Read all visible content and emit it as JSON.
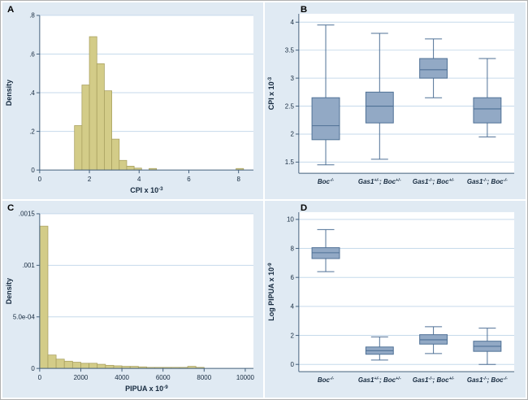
{
  "figure": {
    "description": "Four-panel statistical figure: histograms of CPI and PIPUA distributions and box plots by genotype",
    "panel_letters": [
      "A",
      "B",
      "C",
      "D"
    ]
  },
  "colors": {
    "panel_bg": "#e0eaf3",
    "plot_bg": "#ffffff",
    "grid": "#c6daeb",
    "axis": "#44607c",
    "text": "#15293e",
    "letter": "#000000",
    "hist_fill": "#d3cc88",
    "hist_stroke": "#a79f5e",
    "box_fill": "#92a9c5",
    "box_stroke": "#4f7196"
  },
  "chart_data": [
    {
      "panel": "A",
      "type": "bar",
      "subtype": "histogram",
      "ylabel": "Density",
      "xlabel_parts": [
        {
          "t": "CPI x 10"
        },
        {
          "t": "-3",
          "sup": true
        }
      ],
      "xlim": [
        0,
        8.6
      ],
      "ylim": [
        0,
        0.8
      ],
      "xticks": [
        {
          "v": 0,
          "l": "0"
        },
        {
          "v": 2,
          "l": "2"
        },
        {
          "v": 4,
          "l": "4"
        },
        {
          "v": 6,
          "l": "6"
        },
        {
          "v": 8,
          "l": "8"
        }
      ],
      "yticks": [
        {
          "v": 0,
          "l": "0"
        },
        {
          "v": 0.2,
          "l": ".2"
        },
        {
          "v": 0.4,
          "l": ".4"
        },
        {
          "v": 0.6,
          "l": ".6"
        },
        {
          "v": 0.8,
          "l": ".8"
        }
      ],
      "bin_width": 0.3,
      "bins": [
        [
          1.4,
          0.23
        ],
        [
          1.7,
          0.44
        ],
        [
          2.0,
          0.69
        ],
        [
          2.3,
          0.55
        ],
        [
          2.6,
          0.41
        ],
        [
          2.9,
          0.16
        ],
        [
          3.2,
          0.05
        ],
        [
          3.5,
          0.02
        ],
        [
          3.8,
          0.01
        ],
        [
          4.4,
          0.008
        ],
        [
          7.9,
          0.008
        ]
      ]
    },
    {
      "panel": "B",
      "type": "box",
      "ylabel_parts": [
        {
          "t": "CPI x 10"
        },
        {
          "t": "-3",
          "sup": true
        }
      ],
      "ylim": [
        1.3,
        4.15
      ],
      "yticks": [
        {
          "v": 1.5,
          "l": "1.5"
        },
        {
          "v": 2,
          "l": "2"
        },
        {
          "v": 2.5,
          "l": "2.5"
        },
        {
          "v": 3,
          "l": "3"
        },
        {
          "v": 3.5,
          "l": "3.5"
        },
        {
          "v": 4,
          "l": "4"
        }
      ],
      "groups": [
        {
          "label_parts": [
            {
              "t": "Boc"
            },
            {
              "t": "-/-",
              "sup": true
            }
          ],
          "whisker_low": 1.45,
          "q1": 1.9,
          "median": 2.15,
          "q3": 2.65,
          "whisker_high": 3.95
        },
        {
          "label_parts": [
            {
              "t": "Gas1"
            },
            {
              "t": "+/-",
              "sup": true
            },
            {
              "t": "; Boc"
            },
            {
              "t": "+/-",
              "sup": true
            }
          ],
          "whisker_low": 1.55,
          "q1": 2.2,
          "median": 2.5,
          "q3": 2.75,
          "whisker_high": 3.8
        },
        {
          "label_parts": [
            {
              "t": "Gas1"
            },
            {
              "t": "-/-",
              "sup": true
            },
            {
              "t": "; Boc"
            },
            {
              "t": "+/-",
              "sup": true
            }
          ],
          "whisker_low": 2.65,
          "q1": 3.0,
          "median": 3.15,
          "q3": 3.35,
          "whisker_high": 3.7
        },
        {
          "label_parts": [
            {
              "t": "Gas1"
            },
            {
              "t": "-/-",
              "sup": true
            },
            {
              "t": "; Boc"
            },
            {
              "t": "-/-",
              "sup": true
            }
          ],
          "whisker_low": 1.95,
          "q1": 2.2,
          "median": 2.45,
          "q3": 2.65,
          "whisker_high": 3.35
        }
      ]
    },
    {
      "panel": "C",
      "type": "bar",
      "subtype": "histogram",
      "ylabel": "Density",
      "xlabel_parts": [
        {
          "t": "PIPUA x 10"
        },
        {
          "t": "-9",
          "sup": true
        }
      ],
      "xlim": [
        0,
        10400
      ],
      "ylim": [
        0,
        0.0015
      ],
      "xticks": [
        {
          "v": 0,
          "l": "0"
        },
        {
          "v": 2000,
          "l": "2000"
        },
        {
          "v": 4000,
          "l": "4000"
        },
        {
          "v": 6000,
          "l": "6000"
        },
        {
          "v": 8000,
          "l": "8000"
        },
        {
          "v": 10000,
          "l": "10000"
        }
      ],
      "yticks": [
        {
          "v": 0,
          "l": "0"
        },
        {
          "v": 0.0005,
          "l": "5.0e-04"
        },
        {
          "v": 0.001,
          "l": ".001"
        },
        {
          "v": 0.0015,
          "l": ".0015"
        }
      ],
      "bin_width": 400,
      "bins": [
        [
          0,
          0.00138
        ],
        [
          400,
          0.00013
        ],
        [
          800,
          9e-05
        ],
        [
          1200,
          7e-05
        ],
        [
          1600,
          6e-05
        ],
        [
          2000,
          5e-05
        ],
        [
          2400,
          5e-05
        ],
        [
          2800,
          4e-05
        ],
        [
          3200,
          3e-05
        ],
        [
          3600,
          2.5e-05
        ],
        [
          4000,
          2e-05
        ],
        [
          4400,
          2e-05
        ],
        [
          4800,
          1.5e-05
        ],
        [
          5200,
          1e-05
        ],
        [
          5600,
          1e-05
        ],
        [
          6000,
          1e-05
        ],
        [
          6400,
          1e-05
        ],
        [
          6800,
          1e-05
        ],
        [
          7200,
          2e-05
        ],
        [
          7600,
          1e-05
        ]
      ]
    },
    {
      "panel": "D",
      "type": "box",
      "ylabel_parts": [
        {
          "t": "Log PIPUA x 10"
        },
        {
          "t": "-9",
          "sup": true
        }
      ],
      "ylim": [
        -0.5,
        10.5
      ],
      "yticks": [
        {
          "v": 0,
          "l": "0"
        },
        {
          "v": 2,
          "l": "2"
        },
        {
          "v": 4,
          "l": "4"
        },
        {
          "v": 6,
          "l": "6"
        },
        {
          "v": 8,
          "l": "8"
        },
        {
          "v": 10,
          "l": "10"
        }
      ],
      "groups": [
        {
          "label_parts": [
            {
              "t": "Boc"
            },
            {
              "t": "-/-",
              "sup": true
            }
          ],
          "whisker_low": 6.4,
          "q1": 7.3,
          "median": 7.7,
          "q3": 8.05,
          "whisker_high": 9.3
        },
        {
          "label_parts": [
            {
              "t": "Gas1"
            },
            {
              "t": "+/-",
              "sup": true
            },
            {
              "t": "; Boc"
            },
            {
              "t": "+/-",
              "sup": true
            }
          ],
          "whisker_low": 0.3,
          "q1": 0.7,
          "median": 0.95,
          "q3": 1.2,
          "whisker_high": 1.9
        },
        {
          "label_parts": [
            {
              "t": "Gas1"
            },
            {
              "t": "-/-",
              "sup": true
            },
            {
              "t": "; Boc"
            },
            {
              "t": "+/-",
              "sup": true
            }
          ],
          "whisker_low": 0.75,
          "q1": 1.4,
          "median": 1.7,
          "q3": 2.05,
          "whisker_high": 2.6
        },
        {
          "label_parts": [
            {
              "t": "Gas1"
            },
            {
              "t": "-/-",
              "sup": true
            },
            {
              "t": "; Boc"
            },
            {
              "t": "-/-",
              "sup": true
            }
          ],
          "whisker_low": 0.0,
          "q1": 0.9,
          "median": 1.25,
          "q3": 1.6,
          "whisker_high": 2.5
        }
      ]
    }
  ]
}
